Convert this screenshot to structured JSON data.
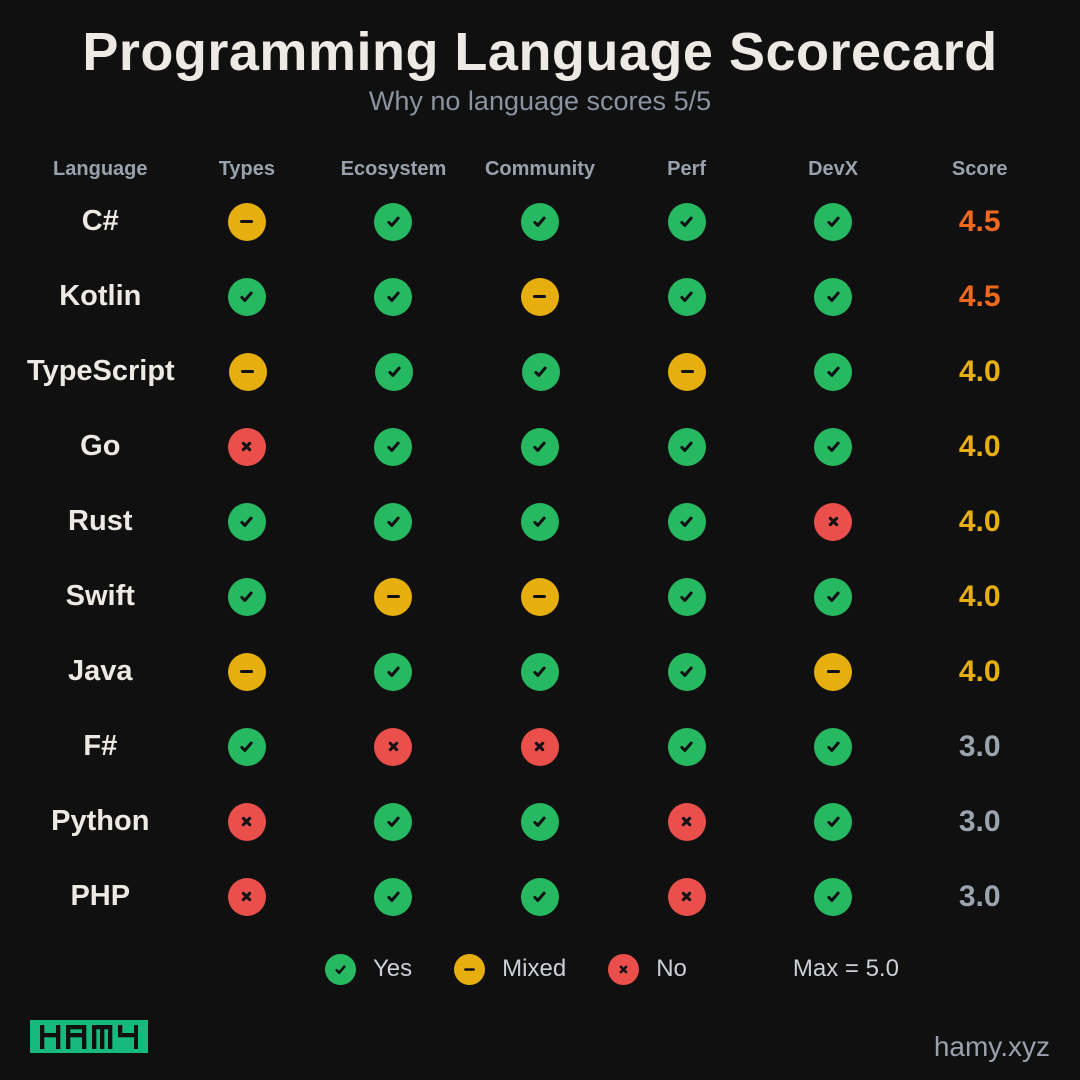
{
  "header": {
    "title": "Programming Language Scorecard",
    "subtitle": "Why no language scores 5/5"
  },
  "chart_data": {
    "type": "table",
    "title": "Programming Language Scorecard",
    "subtitle": "Why no language scores 5/5",
    "columns": [
      "Language",
      "Types",
      "Ecosystem",
      "Community",
      "Perf",
      "DevX",
      "Score"
    ],
    "rating_keys": [
      "types",
      "ecosystem",
      "community",
      "perf",
      "devx"
    ],
    "rating_scale": {
      "yes": "Yes",
      "mixed": "Mixed",
      "no": "No",
      "max_score": 5.0
    },
    "rows": [
      {
        "language": "C#",
        "types": "mixed",
        "ecosystem": "yes",
        "community": "yes",
        "perf": "yes",
        "devx": "yes",
        "score": "4.5",
        "score_tier": "high"
      },
      {
        "language": "Kotlin",
        "types": "yes",
        "ecosystem": "yes",
        "community": "mixed",
        "perf": "yes",
        "devx": "yes",
        "score": "4.5",
        "score_tier": "high"
      },
      {
        "language": "TypeScript",
        "types": "mixed",
        "ecosystem": "yes",
        "community": "yes",
        "perf": "mixed",
        "devx": "yes",
        "score": "4.0",
        "score_tier": "mid"
      },
      {
        "language": "Go",
        "types": "no",
        "ecosystem": "yes",
        "community": "yes",
        "perf": "yes",
        "devx": "yes",
        "score": "4.0",
        "score_tier": "mid"
      },
      {
        "language": "Rust",
        "types": "yes",
        "ecosystem": "yes",
        "community": "yes",
        "perf": "yes",
        "devx": "no",
        "score": "4.0",
        "score_tier": "mid"
      },
      {
        "language": "Swift",
        "types": "yes",
        "ecosystem": "mixed",
        "community": "mixed",
        "perf": "yes",
        "devx": "yes",
        "score": "4.0",
        "score_tier": "mid"
      },
      {
        "language": "Java",
        "types": "mixed",
        "ecosystem": "yes",
        "community": "yes",
        "perf": "yes",
        "devx": "mixed",
        "score": "4.0",
        "score_tier": "mid"
      },
      {
        "language": "F#",
        "types": "yes",
        "ecosystem": "no",
        "community": "no",
        "perf": "yes",
        "devx": "yes",
        "score": "3.0",
        "score_tier": "low"
      },
      {
        "language": "Python",
        "types": "no",
        "ecosystem": "yes",
        "community": "yes",
        "perf": "no",
        "devx": "yes",
        "score": "3.0",
        "score_tier": "low"
      },
      {
        "language": "PHP",
        "types": "no",
        "ecosystem": "yes",
        "community": "yes",
        "perf": "no",
        "devx": "yes",
        "score": "3.0",
        "score_tier": "low"
      }
    ]
  },
  "legend": {
    "items": [
      {
        "rating": "yes",
        "label": "Yes"
      },
      {
        "rating": "mixed",
        "label": "Mixed"
      },
      {
        "rating": "no",
        "label": "No"
      }
    ],
    "max_note": "Max = 5.0"
  },
  "footer": {
    "logo_text": "HAMY",
    "site": "hamy.xyz"
  },
  "colors": {
    "background": "#101010",
    "yes": "#27b962",
    "mixed": "#e6af0d",
    "no": "#ea4f4c",
    "score_high": "#f2691d",
    "score_mid": "#e6af0d",
    "score_low": "#9aa3ae",
    "logo_green": "#16b97e"
  }
}
